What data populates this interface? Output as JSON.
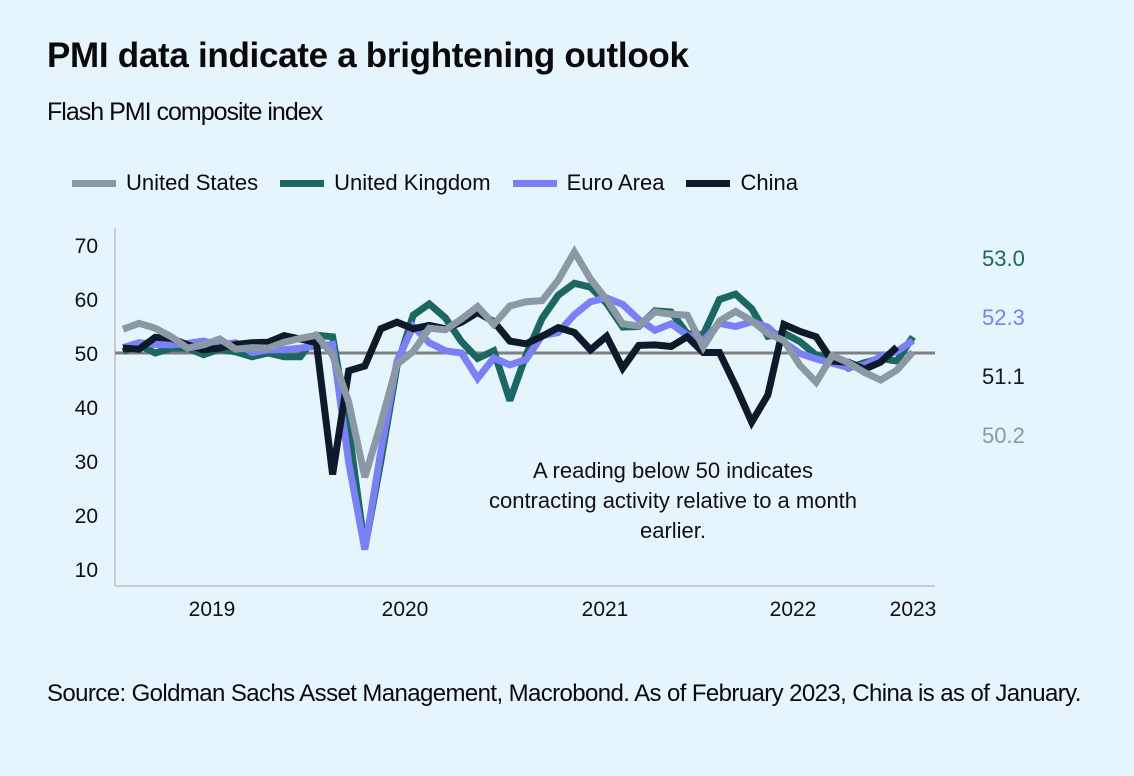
{
  "title": "PMI data indicate a brightening outlook",
  "subtitle": "Flash PMI composite index",
  "source": "Source: Goldman Sachs Asset Management, Macrobond. As of February 2023, China is as of January.",
  "chart_data": {
    "type": "line",
    "title": "PMI data indicate a brightening outlook",
    "subtitle": "Flash PMI composite index",
    "xlabel": "",
    "ylabel": "",
    "ylim": [
      10,
      70
    ],
    "y_ticks": [
      "70",
      "60",
      "50",
      "40",
      "30",
      "20",
      "10"
    ],
    "y_tick_values": [
      70,
      60,
      50,
      40,
      30,
      20,
      10
    ],
    "x_ticks": [
      "2019",
      "2020",
      "2021",
      "2022",
      "2023"
    ],
    "x_start": "2019-01",
    "frequency": "monthly",
    "reference_line": 50,
    "legend_position": "top",
    "annotation": [
      "A reading below 50 indicates",
      "contracting activity relative to a month",
      "earlier."
    ],
    "series": [
      {
        "name": "United States",
        "color": "#8a99a5",
        "end_label": "50.2",
        "values": [
          54.4,
          55.5,
          54.6,
          53.0,
          50.9,
          51.5,
          52.6,
          50.7,
          51.0,
          50.9,
          52.0,
          52.7,
          53.3,
          49.6,
          40.9,
          27.0,
          37.0,
          47.9,
          50.3,
          54.6,
          54.3,
          56.3,
          58.6,
          55.3,
          58.7,
          59.5,
          59.7,
          63.5,
          68.7,
          63.7,
          59.9,
          55.4,
          55.0,
          57.6,
          57.2,
          57.0,
          51.1,
          55.9,
          57.7,
          56.0,
          53.6,
          52.3,
          47.7,
          44.6,
          49.5,
          48.2,
          46.4,
          45.0,
          46.8,
          50.2
        ]
      },
      {
        "name": "United Kingdom",
        "color": "#1d6762",
        "end_label": "53.0",
        "values": [
          50.3,
          51.5,
          50.0,
          50.9,
          50.9,
          49.7,
          50.7,
          50.2,
          49.3,
          50.0,
          49.3,
          49.3,
          53.3,
          53.0,
          36.0,
          13.8,
          30.0,
          47.6,
          57.0,
          59.1,
          56.5,
          52.1,
          49.0,
          50.4,
          41.2,
          49.6,
          56.4,
          60.7,
          62.9,
          62.2,
          59.2,
          54.8,
          54.9,
          57.8,
          57.6,
          53.6,
          53.4,
          59.9,
          60.9,
          58.2,
          53.1,
          53.7,
          52.1,
          49.6,
          49.1,
          47.2,
          48.2,
          49.0,
          48.5,
          53.0
        ]
      },
      {
        "name": "Euro Area",
        "color": "#7b80f5",
        "end_label": "52.3",
        "values": [
          51.0,
          51.9,
          51.6,
          51.5,
          51.8,
          52.2,
          51.5,
          51.9,
          50.1,
          50.6,
          50.6,
          50.9,
          51.3,
          51.6,
          29.7,
          13.6,
          31.9,
          48.5,
          54.9,
          51.9,
          50.4,
          50.0,
          45.3,
          49.1,
          47.8,
          48.8,
          53.2,
          53.8,
          57.1,
          59.5,
          60.2,
          59.0,
          56.2,
          54.2,
          55.4,
          53.3,
          52.3,
          55.5,
          54.9,
          55.8,
          54.8,
          52.0,
          49.9,
          48.9,
          48.1,
          47.3,
          47.8,
          49.3,
          50.3,
          52.3
        ]
      },
      {
        "name": "China",
        "color": "#0e1a2a",
        "end_label": "51.1",
        "values": [
          50.9,
          50.7,
          52.9,
          52.7,
          51.5,
          50.6,
          50.9,
          51.6,
          51.9,
          52.0,
          53.2,
          52.6,
          51.9,
          27.5,
          46.7,
          47.6,
          54.5,
          55.7,
          54.5,
          55.1,
          54.5,
          55.7,
          57.5,
          55.8,
          52.2,
          51.7,
          53.1,
          54.7,
          53.8,
          50.6,
          53.1,
          47.2,
          51.4,
          51.5,
          51.2,
          53.0,
          50.1,
          50.1,
          43.9,
          37.2,
          42.2,
          55.3,
          54.0,
          53.0,
          48.5,
          48.3,
          47.0,
          48.3,
          51.1
        ]
      }
    ]
  }
}
